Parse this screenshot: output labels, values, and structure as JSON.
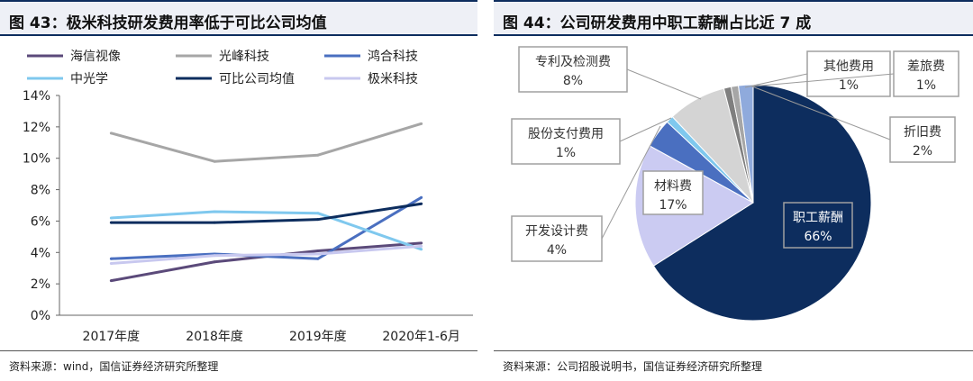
{
  "left": {
    "title": "图 43：极米科技研发费用率低于可比公司均值",
    "source": "资料来源：wind，国信证券经济研究所整理"
  },
  "right": {
    "title": "图 44：公司研发费用中职工薪酬占比近 7 成",
    "source": "资料来源：公司招股说明书，国信证券经济研究所整理"
  },
  "chart_data": [
    {
      "type": "line",
      "title": "极米科技研发费用率低于可比公司均值",
      "categories": [
        "2017年度",
        "2018年度",
        "2019年度",
        "2020年1-6月"
      ],
      "y_ticks": [
        "0%",
        "2%",
        "4%",
        "6%",
        "8%",
        "10%",
        "12%",
        "14%"
      ],
      "ylim": [
        0,
        14
      ],
      "y_unit": "%",
      "grid": false,
      "legend_position": "top",
      "series": [
        {
          "name": "海信视像",
          "color": "#5b4a7a",
          "values": [
            2.2,
            3.4,
            4.1,
            4.6
          ]
        },
        {
          "name": "光峰科技",
          "color": "#a6a6a6",
          "values": [
            11.6,
            9.8,
            10.2,
            12.2
          ]
        },
        {
          "name": "鸿合科技",
          "color": "#4a6fc0",
          "values": [
            3.6,
            3.9,
            3.6,
            7.5
          ]
        },
        {
          "name": "中光学",
          "color": "#7fc8ee",
          "values": [
            6.2,
            6.6,
            6.5,
            4.2
          ]
        },
        {
          "name": "可比公司均值",
          "color": "#0d2d5e",
          "values": [
            5.9,
            5.9,
            6.1,
            7.1
          ]
        },
        {
          "name": "极米科技",
          "color": "#c8c8ef",
          "values": [
            3.3,
            3.8,
            3.9,
            4.4
          ]
        }
      ]
    },
    {
      "type": "pie",
      "title": "公司研发费用中职工薪酬占比近 7 成",
      "slices": [
        {
          "name": "职工薪酬",
          "label": "66%",
          "value": 66,
          "color": "#0d2d5e"
        },
        {
          "name": "材料费",
          "label": "17%",
          "value": 17,
          "color": "#cbcbf2"
        },
        {
          "name": "开发设计费",
          "label": "4%",
          "value": 4,
          "color": "#4a6fc0"
        },
        {
          "name": "股份支付费用",
          "label": "1%",
          "value": 1,
          "color": "#7fc8ee"
        },
        {
          "name": "专利及检测费",
          "label": "8%",
          "value": 8,
          "color": "#d4d4d4"
        },
        {
          "name": "其他费用",
          "label": "1%",
          "value": 1,
          "color": "#7f7f7f"
        },
        {
          "name": "差旅费",
          "label": "1%",
          "value": 1,
          "color": "#a6a6a6"
        },
        {
          "name": "折旧费",
          "label": "2%",
          "value": 2,
          "color": "#8faadc"
        }
      ]
    }
  ]
}
